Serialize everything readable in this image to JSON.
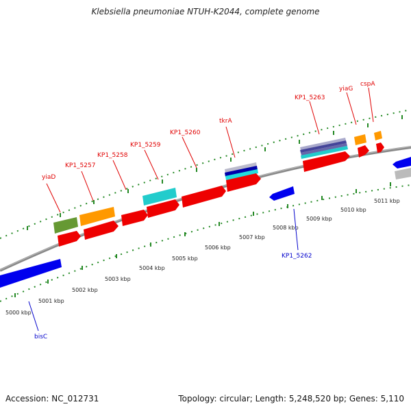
{
  "header": {
    "title": "Klebsiella pneumoniae NTUH-K2044, complete genome"
  },
  "footer": {
    "accession": "Accession: NC_012731",
    "summary": "Topology: circular; Length: 5,248,520 bp; Genes: 5,110"
  },
  "scale": {
    "labels": [
      "5000 kbp",
      "5001 kbp",
      "5002 kbp",
      "5003 kbp",
      "5004 kbp",
      "5005 kbp",
      "5006 kbp",
      "5007 kbp",
      "5008 kbp",
      "5009 kbp",
      "5010 kbp",
      "5011 kbp"
    ]
  },
  "gene_labels": {
    "yiaD": "yiaD",
    "KP1_5257": "KP1_5257",
    "KP1_5258": "KP1_5258",
    "KP1_5259": "KP1_5259",
    "KP1_5260": "KP1_5260",
    "tkrA": "tkrA",
    "KP1_5263": "KP1_5263",
    "yiaG": "yiaG",
    "cspA": "cspA",
    "KP1_5262": "KP1_5262",
    "bisC": "bisC"
  },
  "colors": {
    "forward_cds": "#ee0000",
    "reverse_cds": "#0000ee",
    "orange": "#ff9900",
    "cyan": "#22cccc",
    "olive": "#669933",
    "grey": "#bbbbbb",
    "tick_green": "#228822",
    "label_red": "#e00000",
    "label_blue": "#0000cc"
  }
}
